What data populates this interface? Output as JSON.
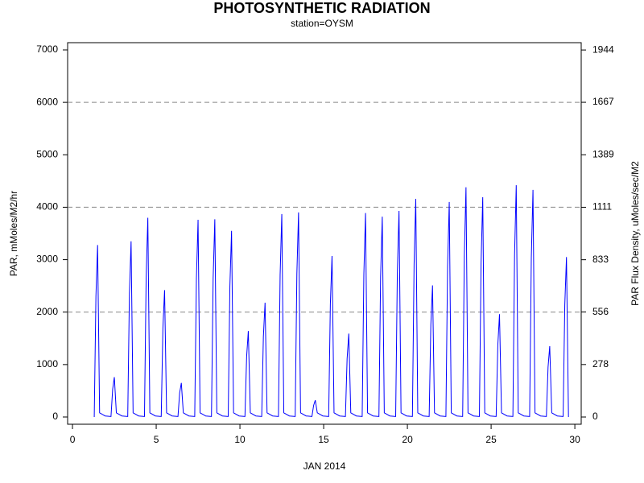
{
  "chart_data": {
    "type": "line",
    "title": "PHOTOSYNTHETIC RADIATION",
    "subtitle": "station=OYSM",
    "x_label": "JAN 2014",
    "y_label": "PAR, mMoles/M2/hr",
    "y2_label": "PAR Flux Density, uMoles/sec/M2",
    "color": "#0000ff",
    "xlim": [
      -0.29,
      30.38
    ],
    "xticks": [
      0,
      5,
      10,
      15,
      20,
      25,
      30
    ],
    "ylim": [
      -138,
      7138
    ],
    "yticks": [
      0,
      1000,
      2000,
      3000,
      4000,
      5000,
      6000,
      7000
    ],
    "y2lim": [
      -38.3,
      1982.8
    ],
    "y2ticks": [
      0,
      278,
      556,
      833,
      1111,
      1389,
      1667,
      1944
    ],
    "gridlines": [
      2000,
      4000,
      6000
    ],
    "x": [
      1.3,
      1.4,
      1.5,
      1.62,
      1.95,
      2.3,
      2.4,
      2.5,
      2.62,
      2.95,
      3.3,
      3.4,
      3.5,
      3.62,
      3.95,
      4.3,
      4.4,
      4.5,
      4.62,
      4.95,
      5.3,
      5.4,
      5.5,
      5.62,
      5.95,
      6.3,
      6.4,
      6.5,
      6.62,
      6.95,
      7.3,
      7.4,
      7.5,
      7.62,
      7.95,
      8.3,
      8.4,
      8.5,
      8.62,
      8.95,
      9.3,
      9.4,
      9.5,
      9.62,
      9.95,
      10.3,
      10.4,
      10.5,
      10.62,
      10.95,
      11.3,
      11.4,
      11.5,
      11.62,
      11.95,
      12.3,
      12.4,
      12.5,
      12.62,
      12.95,
      13.3,
      13.4,
      13.5,
      13.62,
      13.95,
      14.3,
      14.4,
      14.5,
      14.62,
      14.95,
      15.3,
      15.4,
      15.5,
      15.62,
      15.95,
      16.3,
      16.4,
      16.5,
      16.62,
      16.95,
      17.3,
      17.4,
      17.5,
      17.62,
      17.95,
      18.3,
      18.4,
      18.5,
      18.62,
      18.95,
      19.3,
      19.4,
      19.5,
      19.62,
      19.95,
      20.3,
      20.4,
      20.5,
      20.62,
      20.95,
      21.3,
      21.4,
      21.5,
      21.62,
      21.95,
      22.3,
      22.4,
      22.5,
      22.62,
      22.95,
      23.3,
      23.4,
      23.5,
      23.62,
      23.95,
      24.3,
      24.4,
      24.5,
      24.62,
      24.95,
      25.3,
      25.4,
      25.5,
      25.62,
      25.95,
      26.3,
      26.4,
      26.5,
      26.62,
      26.95,
      27.3,
      27.4,
      27.5,
      27.62,
      27.95,
      28.3,
      28.4,
      28.5,
      28.62,
      28.95,
      29.3,
      29.4,
      29.5,
      29.62
    ],
    "values": [
      0,
      2300,
      3280,
      80,
      20,
      10,
      530,
      760,
      80,
      20,
      10,
      2350,
      3350,
      80,
      20,
      10,
      2660,
      3800,
      80,
      20,
      10,
      1690,
      2420,
      80,
      20,
      10,
      460,
      650,
      80,
      20,
      10,
      2630,
      3760,
      80,
      20,
      10,
      2640,
      3770,
      80,
      20,
      10,
      2490,
      3550,
      80,
      20,
      10,
      1150,
      1640,
      80,
      20,
      10,
      1530,
      2180,
      80,
      20,
      10,
      2710,
      3870,
      80,
      20,
      10,
      2730,
      3900,
      80,
      20,
      10,
      220,
      320,
      80,
      20,
      10,
      2150,
      3070,
      80,
      20,
      10,
      1110,
      1590,
      80,
      20,
      10,
      2720,
      3890,
      80,
      20,
      10,
      2670,
      3820,
      80,
      20,
      10,
      2750,
      3930,
      80,
      20,
      10,
      2910,
      4160,
      80,
      20,
      10,
      1760,
      2510,
      80,
      20,
      10,
      2870,
      4100,
      80,
      20,
      10,
      3070,
      4380,
      80,
      20,
      10,
      2930,
      4190,
      80,
      20,
      10,
      1370,
      1960,
      80,
      20,
      10,
      3090,
      4420,
      80,
      20,
      10,
      3030,
      4330,
      80,
      20,
      10,
      950,
      1350,
      80,
      20,
      10,
      2140,
      3050,
      0
    ]
  }
}
